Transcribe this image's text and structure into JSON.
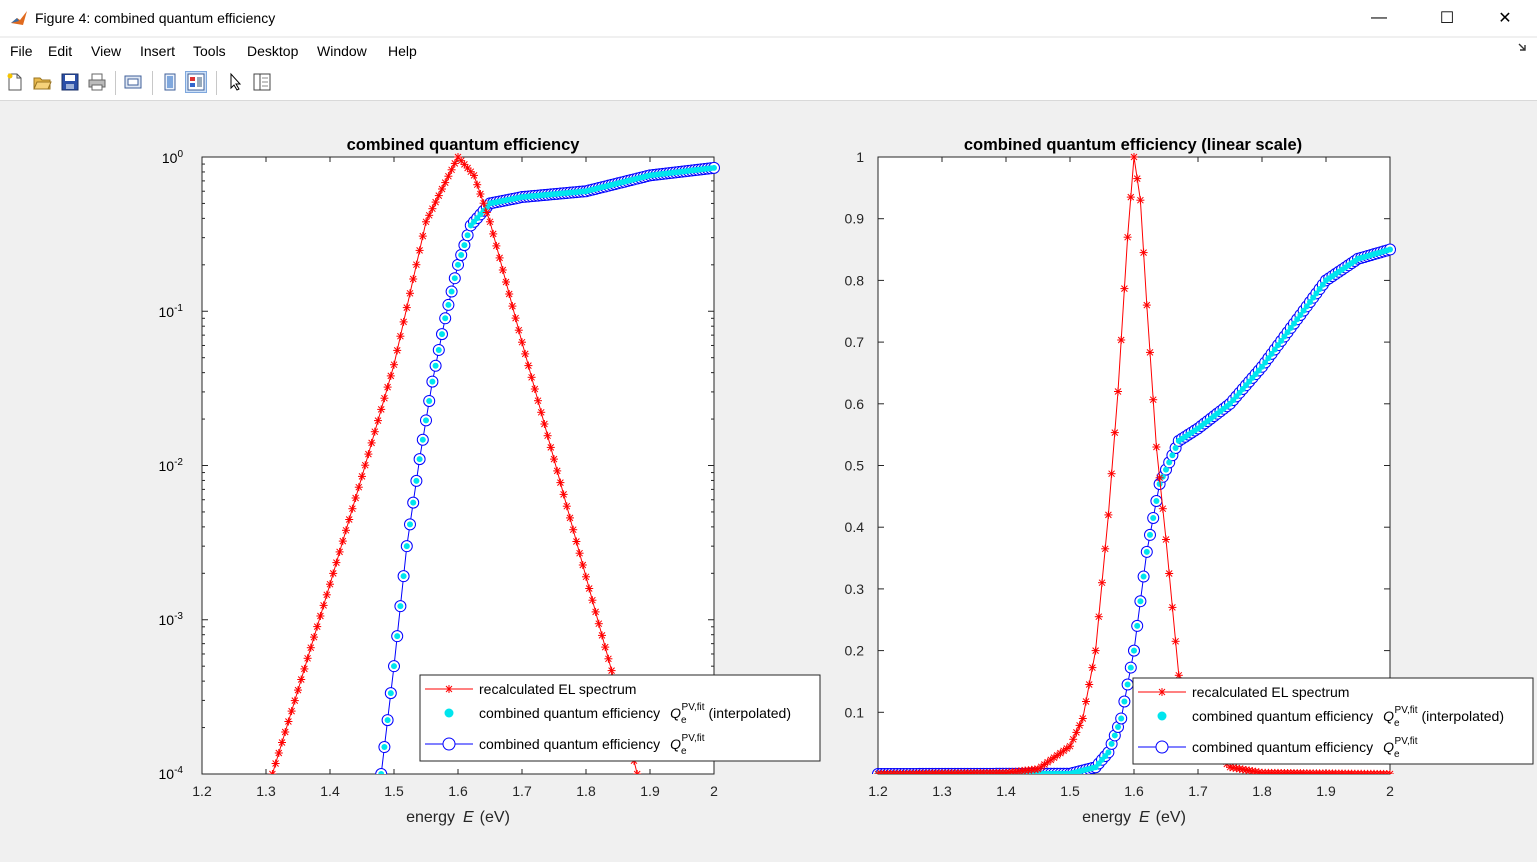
{
  "window": {
    "title": "Figure 4: combined quantum efficiency",
    "minimize_glyph": "—",
    "maximize_glyph": "☐",
    "close_glyph": "✕"
  },
  "menu": [
    "File",
    "Edit",
    "View",
    "Insert",
    "Tools",
    "Desktop",
    "Window",
    "Help"
  ],
  "toolbar_icons": [
    "new-figure-icon",
    "open-file-icon",
    "save-icon",
    "print-icon",
    "print-preview-icon",
    "hide-plot-tools-icon",
    "show-plot-tools-icon",
    "edit-plot-arrow-icon",
    "plot-browser-icon"
  ],
  "colors": {
    "el_spectrum": "#ff0000",
    "qe_interpolated": "#00e5ee",
    "qe_fit": "#0000ff"
  },
  "legend": {
    "el": "recalculated EL spectrum",
    "qe_interp": "combined quantum efficiency",
    "qe_interp_suffix": "(interpolated)",
    "qe_fit": "combined quantum efficiency",
    "symbol_base": "Q",
    "symbol_sub": "e",
    "symbol_sup": "PV,fit"
  },
  "chart_data": [
    {
      "type": "line",
      "title": "combined quantum efficiency",
      "xlabel_text": "energy",
      "xlabel_var": "E",
      "xlabel_unit": "(eV)",
      "xlim": [
        1.2,
        2.0
      ],
      "ylim": [
        0.0001,
        1
      ],
      "yscale": "log",
      "xticks": [
        "1.2",
        "1.3",
        "1.4",
        "1.5",
        "1.6",
        "1.7",
        "1.8",
        "1.9",
        "2"
      ],
      "yticks": [
        {
          "base": "10",
          "exp": "-4"
        },
        {
          "base": "10",
          "exp": "-3"
        },
        {
          "base": "10",
          "exp": "-2"
        },
        {
          "base": "10",
          "exp": "-1"
        },
        {
          "base": "10",
          "exp": "0"
        }
      ],
      "legend_position": "bottom-right",
      "series": [
        {
          "name": "recalculated EL spectrum",
          "marker": "asterisk",
          "color": "#ff0000",
          "x": [
            1.31,
            1.35,
            1.4,
            1.45,
            1.5,
            1.55,
            1.575,
            1.6,
            1.625,
            1.65,
            1.7,
            1.75,
            1.8,
            1.85,
            1.88
          ],
          "y": [
            0.0001,
            0.00035,
            0.0017,
            0.0085,
            0.045,
            0.38,
            0.62,
            1.0,
            0.76,
            0.38,
            0.063,
            0.011,
            0.0019,
            0.00033,
            0.0001
          ]
        },
        {
          "name": "combined quantum efficiency Qe PV,fit (interpolated)",
          "marker": "dot",
          "color": "#00e5ee",
          "x": [
            1.48,
            1.5,
            1.52,
            1.54,
            1.56,
            1.58,
            1.6,
            1.62,
            1.65,
            1.7,
            1.8,
            1.9,
            2.0
          ],
          "y": [
            0.0001,
            0.0005,
            0.003,
            0.011,
            0.035,
            0.09,
            0.2,
            0.36,
            0.5,
            0.55,
            0.6,
            0.76,
            0.85
          ]
        },
        {
          "name": "combined quantum efficiency Qe PV,fit",
          "marker": "circle",
          "color": "#0000ff",
          "x": [
            1.48,
            1.5,
            1.52,
            1.54,
            1.56,
            1.58,
            1.6,
            1.62,
            1.65,
            1.7,
            1.8,
            1.9,
            2.0
          ],
          "y": [
            0.0001,
            0.0005,
            0.003,
            0.011,
            0.035,
            0.09,
            0.2,
            0.36,
            0.5,
            0.55,
            0.6,
            0.76,
            0.85
          ]
        }
      ]
    },
    {
      "type": "line",
      "title": "combined quantum efficiency (linear scale)",
      "xlabel_text": "energy",
      "xlabel_var": "E",
      "xlabel_unit": "(eV)",
      "xlim": [
        1.2,
        2.0
      ],
      "ylim": [
        0,
        1
      ],
      "yscale": "linear",
      "xticks": [
        "1.2",
        "1.3",
        "1.4",
        "1.5",
        "1.6",
        "1.7",
        "1.8",
        "1.9",
        "2"
      ],
      "yticks": [
        "0.1",
        "0.2",
        "0.3",
        "0.4",
        "0.5",
        "0.6",
        "0.7",
        "0.8",
        "0.9",
        "1"
      ],
      "legend_position": "bottom-right",
      "series": [
        {
          "name": "recalculated EL spectrum",
          "marker": "asterisk",
          "color": "#ff0000",
          "x": [
            1.2,
            1.4,
            1.45,
            1.5,
            1.52,
            1.54,
            1.56,
            1.575,
            1.59,
            1.6,
            1.61,
            1.62,
            1.635,
            1.65,
            1.67,
            1.7,
            1.75,
            1.8,
            2.0
          ],
          "y": [
            0,
            0.002,
            0.008,
            0.045,
            0.09,
            0.2,
            0.42,
            0.62,
            0.87,
            1.0,
            0.93,
            0.76,
            0.53,
            0.38,
            0.16,
            0.063,
            0.011,
            0.002,
            0
          ]
        },
        {
          "name": "combined quantum efficiency Qe PV,fit (interpolated)",
          "marker": "dot",
          "color": "#00e5ee",
          "x": [
            1.2,
            1.5,
            1.54,
            1.56,
            1.58,
            1.6,
            1.62,
            1.64,
            1.67,
            1.7,
            1.75,
            1.8,
            1.85,
            1.9,
            1.95,
            2.0
          ],
          "y": [
            0,
            0.0005,
            0.011,
            0.035,
            0.09,
            0.2,
            0.36,
            0.47,
            0.54,
            0.56,
            0.6,
            0.66,
            0.73,
            0.8,
            0.835,
            0.85
          ]
        },
        {
          "name": "combined quantum efficiency Qe PV,fit",
          "marker": "circle",
          "color": "#0000ff",
          "x": [
            1.2,
            1.5,
            1.54,
            1.56,
            1.58,
            1.6,
            1.62,
            1.64,
            1.67,
            1.7,
            1.75,
            1.8,
            1.85,
            1.9,
            1.95,
            2.0
          ],
          "y": [
            0,
            0.0005,
            0.011,
            0.035,
            0.09,
            0.2,
            0.36,
            0.47,
            0.54,
            0.56,
            0.6,
            0.66,
            0.73,
            0.8,
            0.835,
            0.85
          ]
        }
      ]
    }
  ]
}
